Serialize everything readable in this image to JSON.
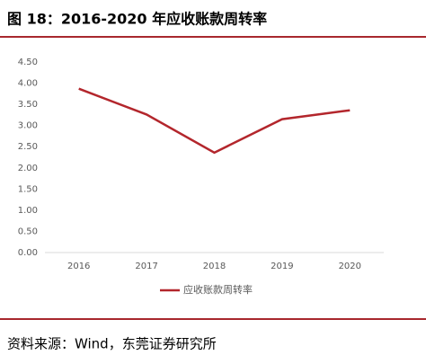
{
  "chart_data": {
    "type": "line",
    "title": "图 18：2016-2020 年应收账款周转率",
    "categories": [
      "2016",
      "2017",
      "2018",
      "2019",
      "2020"
    ],
    "series": [
      {
        "name": "应收账款周转率",
        "color": "#b3262c",
        "values": [
          3.87,
          3.26,
          2.36,
          3.15,
          3.36
        ]
      }
    ],
    "ylim": [
      0,
      4.5
    ],
    "yticks": [
      {
        "value": 0,
        "label": "0.00"
      },
      {
        "value": 0.5,
        "label": "0.50"
      },
      {
        "value": 1,
        "label": "1.00"
      },
      {
        "value": 1.5,
        "label": "1.50"
      },
      {
        "value": 2,
        "label": "2.00"
      },
      {
        "value": 2.5,
        "label": "2.50"
      },
      {
        "value": 3,
        "label": "3.00"
      },
      {
        "value": 3.5,
        "label": "3.50"
      },
      {
        "value": 4,
        "label": "4.00"
      },
      {
        "value": 4.5,
        "label": "4.50"
      }
    ],
    "grid": false,
    "legend": "bottom",
    "source": "资料来源：Wind，东莞证券研究所"
  }
}
